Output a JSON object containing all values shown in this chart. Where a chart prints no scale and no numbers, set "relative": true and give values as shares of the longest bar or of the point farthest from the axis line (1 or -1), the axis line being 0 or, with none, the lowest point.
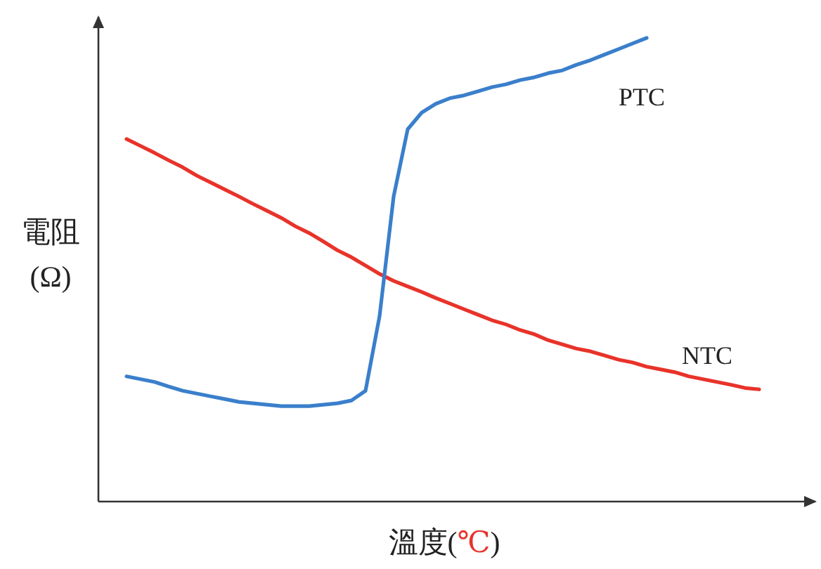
{
  "chart_data": {
    "type": "line",
    "relative": true,
    "xlabel": "溫度(℃)",
    "ylabel": "電阻(Ω)",
    "marker": "none",
    "line_style": "solid",
    "legend": false,
    "categories": [
      null,
      null,
      null,
      null,
      null,
      null,
      null,
      null,
      null,
      null,
      null,
      null,
      null,
      null,
      null,
      null,
      null,
      null,
      null,
      null,
      null,
      null,
      null,
      null,
      null,
      null,
      null,
      null,
      null,
      null,
      null,
      null,
      null,
      null,
      null,
      null,
      null,
      null,
      null,
      null,
      null,
      null,
      null,
      null,
      null,
      null
    ],
    "series": [
      {
        "name": "NTC",
        "color": "#e8332a",
        "values": [
          0.782,
          0.767,
          0.752,
          0.736,
          0.721,
          0.703,
          0.688,
          0.673,
          0.658,
          0.642,
          0.627,
          0.612,
          0.594,
          0.579,
          0.561,
          0.542,
          0.527,
          0.509,
          0.491,
          0.476,
          0.464,
          0.452,
          0.439,
          0.427,
          0.415,
          0.403,
          0.391,
          0.382,
          0.37,
          0.361,
          0.348,
          0.339,
          0.33,
          0.324,
          0.315,
          0.306,
          0.3,
          0.291,
          0.285,
          0.279,
          0.27,
          0.264,
          0.258,
          0.252,
          0.245,
          0.242
        ]
      },
      {
        "name": "PTC",
        "color": "#3a7fcb",
        "values": [
          0.27,
          0.264,
          0.258,
          0.248,
          0.239,
          0.233,
          0.227,
          0.221,
          0.215,
          0.212,
          0.209,
          0.206,
          0.206,
          0.206,
          0.209,
          0.212,
          0.218,
          0.239,
          0.4,
          0.658,
          0.803,
          0.839,
          0.858,
          0.87,
          0.876,
          0.885,
          0.894,
          0.9,
          0.909,
          0.915,
          0.924,
          0.93,
          0.942,
          0.952,
          0.964,
          0.976,
          0.988,
          1.0,
          null,
          null,
          null,
          null,
          null,
          null,
          null,
          null
        ]
      }
    ]
  }
}
